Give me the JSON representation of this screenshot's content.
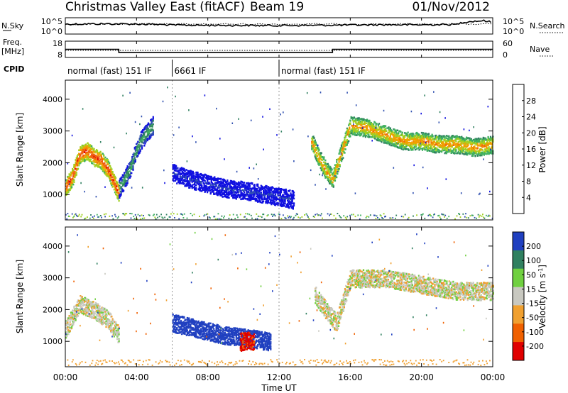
{
  "header": {
    "title": "Christmas Valley East (fitACF)",
    "beam": "Beam 19",
    "date": "01/Nov/2012"
  },
  "top_panels": {
    "nsky_label": "N.Sky",
    "nsky_ticks": [
      "10^5",
      "10^0"
    ],
    "nsearch_label": "N.Search",
    "freq_label_1": "Freq.",
    "freq_label_2": "[MHz]",
    "freq_ticks": [
      "18",
      "8"
    ],
    "nave_label": "Nave",
    "nave_ticks": [
      "60",
      "0"
    ],
    "cpid_label": "CPID"
  },
  "cpid_segments": [
    {
      "label": "normal (fast) 151 IF",
      "start_h": 0,
      "end_h": 6
    },
    {
      "label": "6661 IF",
      "start_h": 6,
      "end_h": 12
    },
    {
      "label": "normal (fast) 151 IF",
      "start_h": 12,
      "end_h": 24
    }
  ],
  "xaxis": {
    "title": "Time UT",
    "ticks": [
      "00:00",
      "04:00",
      "08:00",
      "12:00",
      "16:00",
      "20:00",
      "00:00"
    ]
  },
  "colors": {
    "power": [
      "#1010e0",
      "#3050b0",
      "#308060",
      "#40b060",
      "#a0d020",
      "#f0a000",
      "#f06010",
      "#e00000"
    ],
    "velocity": [
      "#e00000",
      "#f06000",
      "#f0a030",
      "#c8c8c0",
      "#70d040",
      "#308060",
      "#2040c0"
    ],
    "trace": "#000000",
    "gray": "#bcbcb4"
  },
  "chart_data": [
    {
      "type": "heatmap",
      "name_ref": "power",
      "ylabel": "Slant Range [km]",
      "yticks": [
        "1000",
        "2000",
        "3000",
        "4000"
      ],
      "ylim": [
        200,
        4600
      ],
      "xlim_hours": [
        0,
        24
      ],
      "colorbar": {
        "label": "Power [dB]",
        "ticks": [
          "4",
          "8",
          "12",
          "16",
          "20",
          "24",
          "28"
        ],
        "range": [
          0,
          32
        ]
      },
      "ridges": [
        {
          "x": [
            0.0,
            0.4,
            0.8,
            1.2,
            1.6,
            2.0,
            2.4,
            2.8,
            3.0
          ],
          "y": [
            1250,
            1600,
            2300,
            2400,
            2200,
            2100,
            1800,
            1300,
            1050
          ],
          "value": 28
        },
        {
          "x": [
            3.0,
            3.3,
            3.6,
            3.9,
            4.2,
            4.6,
            4.9
          ],
          "y": [
            1200,
            1500,
            1800,
            2300,
            2700,
            3000,
            3200
          ],
          "value": 14
        },
        {
          "x": [
            6.0,
            7.0,
            8.0,
            9.0,
            10.0,
            11.0,
            12.0,
            12.8
          ],
          "y": [
            1700,
            1500,
            1350,
            1200,
            1150,
            1050,
            950,
            850
          ],
          "value": 5
        },
        {
          "x": [
            13.8,
            14.2,
            14.6,
            15.0,
            15.4,
            16.0,
            17.0,
            18.0,
            19.0,
            20.0,
            21.0,
            22.0,
            23.0,
            24.0
          ],
          "y": [
            2700,
            2200,
            1800,
            1500,
            2200,
            3200,
            3100,
            2900,
            2700,
            2700,
            2600,
            2600,
            2500,
            2600
          ],
          "value": 24
        }
      ]
    },
    {
      "type": "heatmap",
      "name_ref": "velocity",
      "ylabel": "Slant Range [km]",
      "yticks": [
        "1000",
        "2000",
        "3000",
        "4000"
      ],
      "ylim": [
        200,
        4600
      ],
      "xlim_hours": [
        0,
        24
      ],
      "colorbar": {
        "label": "Velocity [m s^-1]",
        "ticks": [
          "200",
          "100",
          "50",
          "15",
          "-15",
          "-50",
          "-100",
          "-200"
        ],
        "range": [
          -250,
          250
        ]
      },
      "ridges": [
        {
          "x": [
            0.0,
            0.8,
            1.6,
            2.4,
            3.0
          ],
          "y": [
            1400,
            2200,
            2000,
            1700,
            1200
          ],
          "value": 0
        },
        {
          "x": [
            6.0,
            7.5,
            9.0,
            10.5,
            11.5
          ],
          "y": [
            1600,
            1400,
            1200,
            1100,
            1000
          ],
          "value": 150
        },
        {
          "x": [
            9.8,
            10.2,
            10.6
          ],
          "y": [
            1000,
            1050,
            1000
          ],
          "value": -220
        },
        {
          "x": [
            14.0,
            14.6,
            15.2,
            16.0,
            18.0,
            20.0,
            22.0,
            24.0
          ],
          "y": [
            2500,
            2000,
            1600,
            3000,
            3000,
            2800,
            2600,
            2600
          ],
          "value": 0
        }
      ]
    },
    {
      "type": "line",
      "name_ref": "nsky",
      "series": [
        {
          "name": "N.Sky",
          "x": [
            0,
            2,
            4,
            6,
            8,
            10,
            12,
            14,
            16,
            18,
            20,
            22,
            23.5,
            24
          ],
          "y": [
            3000,
            4000,
            3500,
            1500,
            1200,
            1100,
            1000,
            1200,
            1500,
            2000,
            1800,
            2500,
            50000,
            6000
          ]
        }
      ]
    },
    {
      "type": "line",
      "name_ref": "freq",
      "series": [
        {
          "name": "Freq.",
          "x": [
            0,
            3,
            3,
            15,
            15,
            24
          ],
          "y": [
            12.5,
            12.5,
            10.0,
            10.0,
            12.5,
            12.5
          ]
        }
      ]
    }
  ]
}
